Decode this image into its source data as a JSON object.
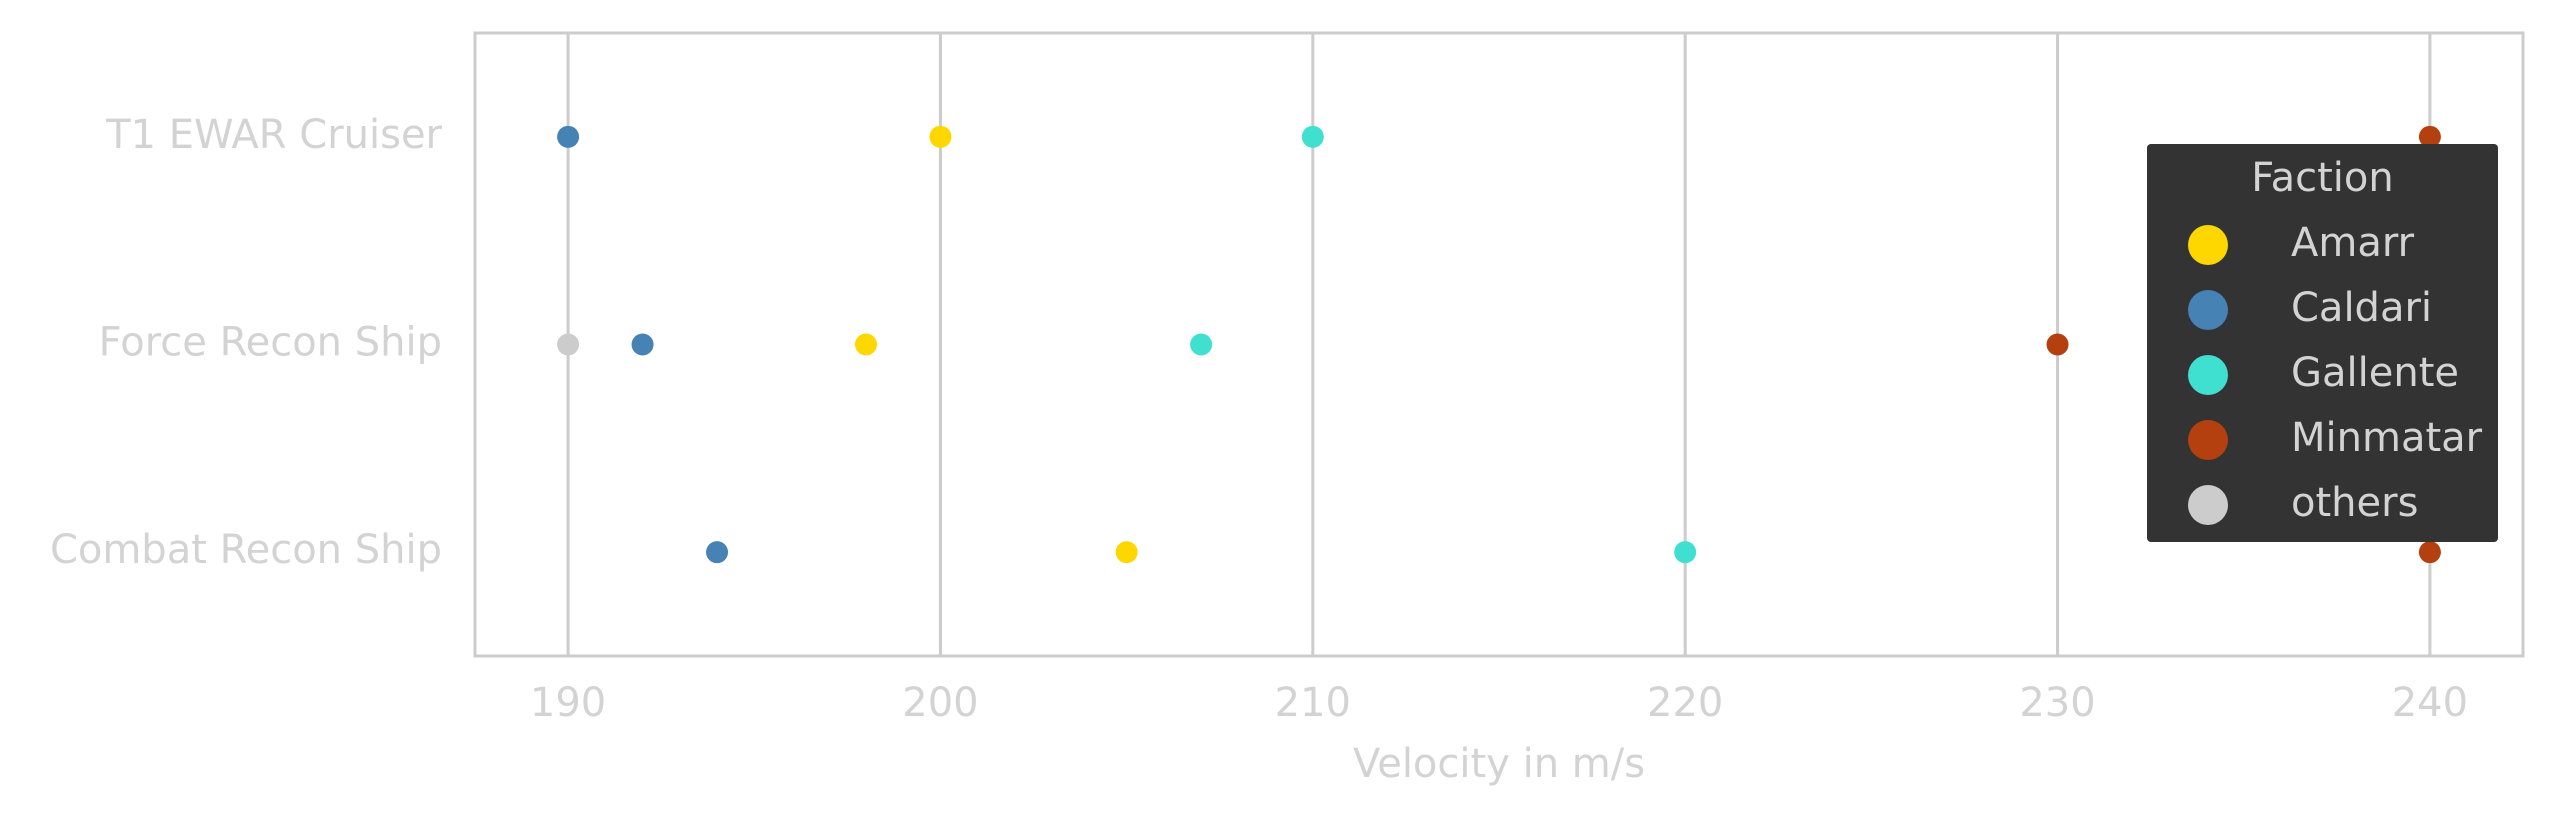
{
  "chart_data": {
    "type": "strip",
    "x_label": "Velocity in m/s",
    "categories": [
      "T1 EWAR Cruiser",
      "Force Recon Ship",
      "Combat Recon Ship"
    ],
    "series": [
      {
        "name": "Amarr",
        "color": "#ffd700",
        "values": [
          200,
          198,
          205
        ]
      },
      {
        "name": "Caldari",
        "color": "#4682b4",
        "values": [
          190,
          192,
          194
        ]
      },
      {
        "name": "Gallente",
        "color": "#40e0d0",
        "values": [
          210,
          207,
          220
        ]
      },
      {
        "name": "Minmatar",
        "color": "#b5400f",
        "values": [
          240,
          230,
          240
        ]
      },
      {
        "name": "others",
        "color": "#cccccc",
        "values": [
          null,
          190,
          null
        ]
      }
    ],
    "xlim": [
      187.5,
      242.5
    ],
    "xticks": [
      190,
      200,
      210,
      220,
      230,
      240
    ],
    "grid": true,
    "legend": {
      "title": "Faction",
      "position": "right"
    }
  }
}
